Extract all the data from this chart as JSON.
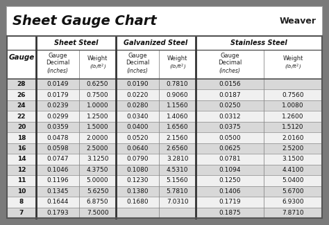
{
  "title": "Sheet Gauge Chart",
  "bg_outer": "#7a7a7a",
  "bg_inner": "#ffffff",
  "row_bg_odd": "#d8d8d8",
  "row_bg_even": "#f0f0f0",
  "header_bg1": "#ffffff",
  "header_bg2": "#ffffff",
  "divider_thick": "#333333",
  "divider_thin": "#999999",
  "gauges": [
    28,
    26,
    24,
    22,
    20,
    18,
    16,
    14,
    12,
    11,
    10,
    8,
    7
  ],
  "sheet_steel": {
    "decimal": [
      "0.0149",
      "0.0179",
      "0.0239",
      "0.0299",
      "0.0359",
      "0.0478",
      "0.0598",
      "0.0747",
      "0.1046",
      "0.1196",
      "0.1345",
      "0.1644",
      "0.1793"
    ],
    "weight": [
      "0.6250",
      "0.7500",
      "1.0000",
      "1.2500",
      "1.5000",
      "2.0000",
      "2.5000",
      "3.1250",
      "4.3750",
      "5.0000",
      "5.6250",
      "6.8750",
      "7.5000"
    ]
  },
  "galvanized_steel": {
    "decimal": [
      "0.0190",
      "0.0220",
      "0.0280",
      "0.0340",
      "0.0400",
      "0.0520",
      "0.0640",
      "0.0790",
      "0.1080",
      "0.1230",
      "0.1380",
      "0.1680",
      ""
    ],
    "weight": [
      "0.7810",
      "0.9060",
      "1.1560",
      "1.4060",
      "1.6560",
      "2.1560",
      "2.6560",
      "3.2810",
      "4.5310",
      "5.1560",
      "5.7810",
      "7.0310",
      ""
    ]
  },
  "stainless_steel": {
    "decimal": [
      "0.0156",
      "0.0187",
      "0.0250",
      "0.0312",
      "0.0375",
      "0.0500",
      "0.0625",
      "0.0781",
      "0.1094",
      "0.1250",
      "0.1406",
      "0.1719",
      "0.1875"
    ],
    "weight": [
      "",
      "0.7560",
      "1.0080",
      "1.2600",
      "1.5120",
      "2.0160",
      "2.5200",
      "3.1500",
      "4.4100",
      "5.0400",
      "5.6700",
      "6.9300",
      "7.8710"
    ]
  },
  "fig_w": 4.74,
  "fig_h": 3.25,
  "dpi": 100
}
